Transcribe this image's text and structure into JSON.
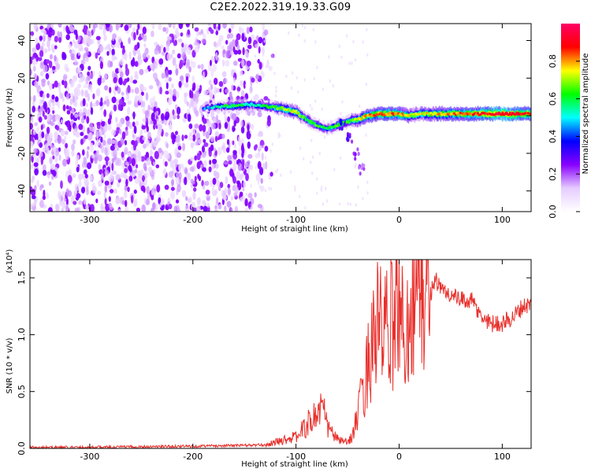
{
  "figure_title": "C2E2.2022.319.19.33.G09",
  "chart_data": [
    {
      "type": "heatmap",
      "title": "C2E2.2022.319.19.33.G09",
      "xlabel": "Height of straight line (km)",
      "ylabel": "Frequency (Hz)",
      "xlim": [
        -358,
        128
      ],
      "ylim": [
        -51,
        49
      ],
      "x_ticks": [
        -300,
        -200,
        -100,
        0,
        100
      ],
      "x_tick_labels": [
        "-300",
        "-200",
        "-100",
        "0",
        "100"
      ],
      "y_ticks": [
        -40,
        -20,
        0,
        20,
        40
      ],
      "y_tick_labels": [
        "-40",
        "-20",
        "0",
        "20",
        "40"
      ],
      "colorbar": {
        "label": "Normalized spectral amplitude",
        "range": [
          0,
          1
        ],
        "ticks": [
          0.0,
          0.2,
          0.4,
          0.6,
          0.8
        ],
        "tick_labels": [
          "0.0",
          "0.2",
          "0.4",
          "0.6",
          "0.8"
        ],
        "colormap": [
          "#ffffff",
          "#e6ccff",
          "#8800ff",
          "#0000ff",
          "#00ffff",
          "#00ff00",
          "#ffff00",
          "#ff0000",
          "#ff0066"
        ]
      },
      "noise_region": {
        "x_from": -358,
        "x_to": -150,
        "level": 0.15
      },
      "ridge": [
        {
          "x": -190,
          "f": 4,
          "a": 0.35
        },
        {
          "x": -175,
          "f": 5,
          "a": 0.45
        },
        {
          "x": -160,
          "f": 5,
          "a": 0.55
        },
        {
          "x": -145,
          "f": 6,
          "a": 0.45
        },
        {
          "x": -130,
          "f": 5,
          "a": 0.5
        },
        {
          "x": -115,
          "f": 4,
          "a": 0.6
        },
        {
          "x": -100,
          "f": 2,
          "a": 0.65
        },
        {
          "x": -90,
          "f": -2,
          "a": 0.55
        },
        {
          "x": -80,
          "f": -5,
          "a": 0.55
        },
        {
          "x": -70,
          "f": -7,
          "a": 0.5
        },
        {
          "x": -60,
          "f": -5,
          "a": 0.55
        },
        {
          "x": -50,
          "f": -3,
          "a": 0.55
        },
        {
          "x": -40,
          "f": -2,
          "a": 0.65
        },
        {
          "x": -30,
          "f": 0,
          "a": 0.7
        },
        {
          "x": -20,
          "f": 1,
          "a": 0.75
        },
        {
          "x": -10,
          "f": 1,
          "a": 0.75
        },
        {
          "x": 0,
          "f": 1,
          "a": 0.75
        },
        {
          "x": 10,
          "f": 0,
          "a": 0.65
        },
        {
          "x": 20,
          "f": 1,
          "a": 0.65
        },
        {
          "x": 40,
          "f": 1,
          "a": 0.7
        },
        {
          "x": 60,
          "f": 1,
          "a": 0.75
        },
        {
          "x": 80,
          "f": 1,
          "a": 0.8
        },
        {
          "x": 100,
          "f": 1,
          "a": 0.85
        },
        {
          "x": 115,
          "f": 1,
          "a": 0.8
        },
        {
          "x": 128,
          "f": 1,
          "a": 0.8
        }
      ],
      "branch": [
        {
          "x": -55,
          "f": -5
        },
        {
          "x": -48,
          "f": -12
        },
        {
          "x": -42,
          "f": -20
        },
        {
          "x": -36,
          "f": -28
        }
      ]
    },
    {
      "type": "line",
      "xlabel": "Height of straight line (km)",
      "ylabel": "SNR (10 * v/v)",
      "y_multiplier": "(x10⁴)",
      "xlim": [
        -358,
        128
      ],
      "ylim": [
        0,
        1.66
      ],
      "x_ticks": [
        -300,
        -200,
        -100,
        0,
        100
      ],
      "x_tick_labels": [
        "-300",
        "-200",
        "-100",
        "0",
        "100"
      ],
      "y_ticks": [
        0.0,
        0.5,
        1.0,
        1.5
      ],
      "y_tick_labels": [
        "0.0",
        "0.5",
        "1.0",
        "1.5"
      ],
      "color": "#e8302c",
      "x": [
        -358,
        -300,
        -200,
        -130,
        -110,
        -100,
        -90,
        -80,
        -75,
        -70,
        -60,
        -50,
        -45,
        -40,
        -35,
        -30,
        -25,
        -20,
        -15,
        -10,
        -5,
        0,
        5,
        10,
        15,
        20,
        25,
        30,
        35,
        40,
        50,
        60,
        70,
        80,
        90,
        100,
        110,
        120,
        128
      ],
      "y": [
        0.01,
        0.01,
        0.02,
        0.03,
        0.08,
        0.1,
        0.2,
        0.3,
        0.38,
        0.2,
        0.08,
        0.05,
        0.12,
        0.3,
        0.5,
        0.75,
        1.0,
        1.1,
        1.0,
        1.05,
        1.1,
        1.35,
        0.9,
        1.25,
        1.35,
        1.4,
        1.3,
        1.35,
        1.5,
        1.4,
        1.35,
        1.3,
        1.3,
        1.15,
        1.1,
        1.1,
        1.15,
        1.25,
        1.27
      ]
    }
  ]
}
